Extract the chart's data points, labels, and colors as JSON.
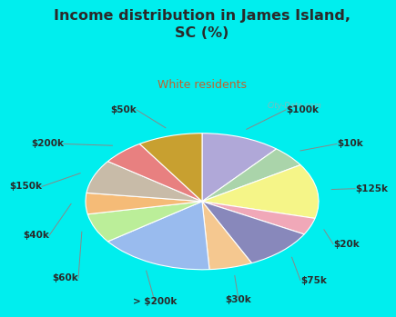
{
  "title": "Income distribution in James Island,\nSC (%)",
  "subtitle": "White residents",
  "title_color": "#2a2a2a",
  "subtitle_color": "#c0622d",
  "bg_top": "#00eeee",
  "bg_chart_color": "#ddf0e8",
  "labels": [
    "$100k",
    "$10k",
    "$125k",
    "$20k",
    "$75k",
    "$30k",
    "> $200k",
    "$60k",
    "$40k",
    "$150k",
    "$200k",
    "$50k"
  ],
  "values": [
    11,
    5,
    13,
    4,
    10,
    6,
    16,
    7,
    5,
    8,
    6,
    9
  ],
  "colors": [
    "#b0a8d8",
    "#aad4aa",
    "#f5f588",
    "#f0a8b8",
    "#8888bb",
    "#f5c890",
    "#99bbee",
    "#bbee99",
    "#f5bb77",
    "#c8bba8",
    "#e88080",
    "#c8a030"
  ],
  "watermark": "City-Data.com",
  "startangle": 90,
  "label_fontsize": 7.5,
  "title_fontsize": 11.5,
  "subtitle_fontsize": 9
}
